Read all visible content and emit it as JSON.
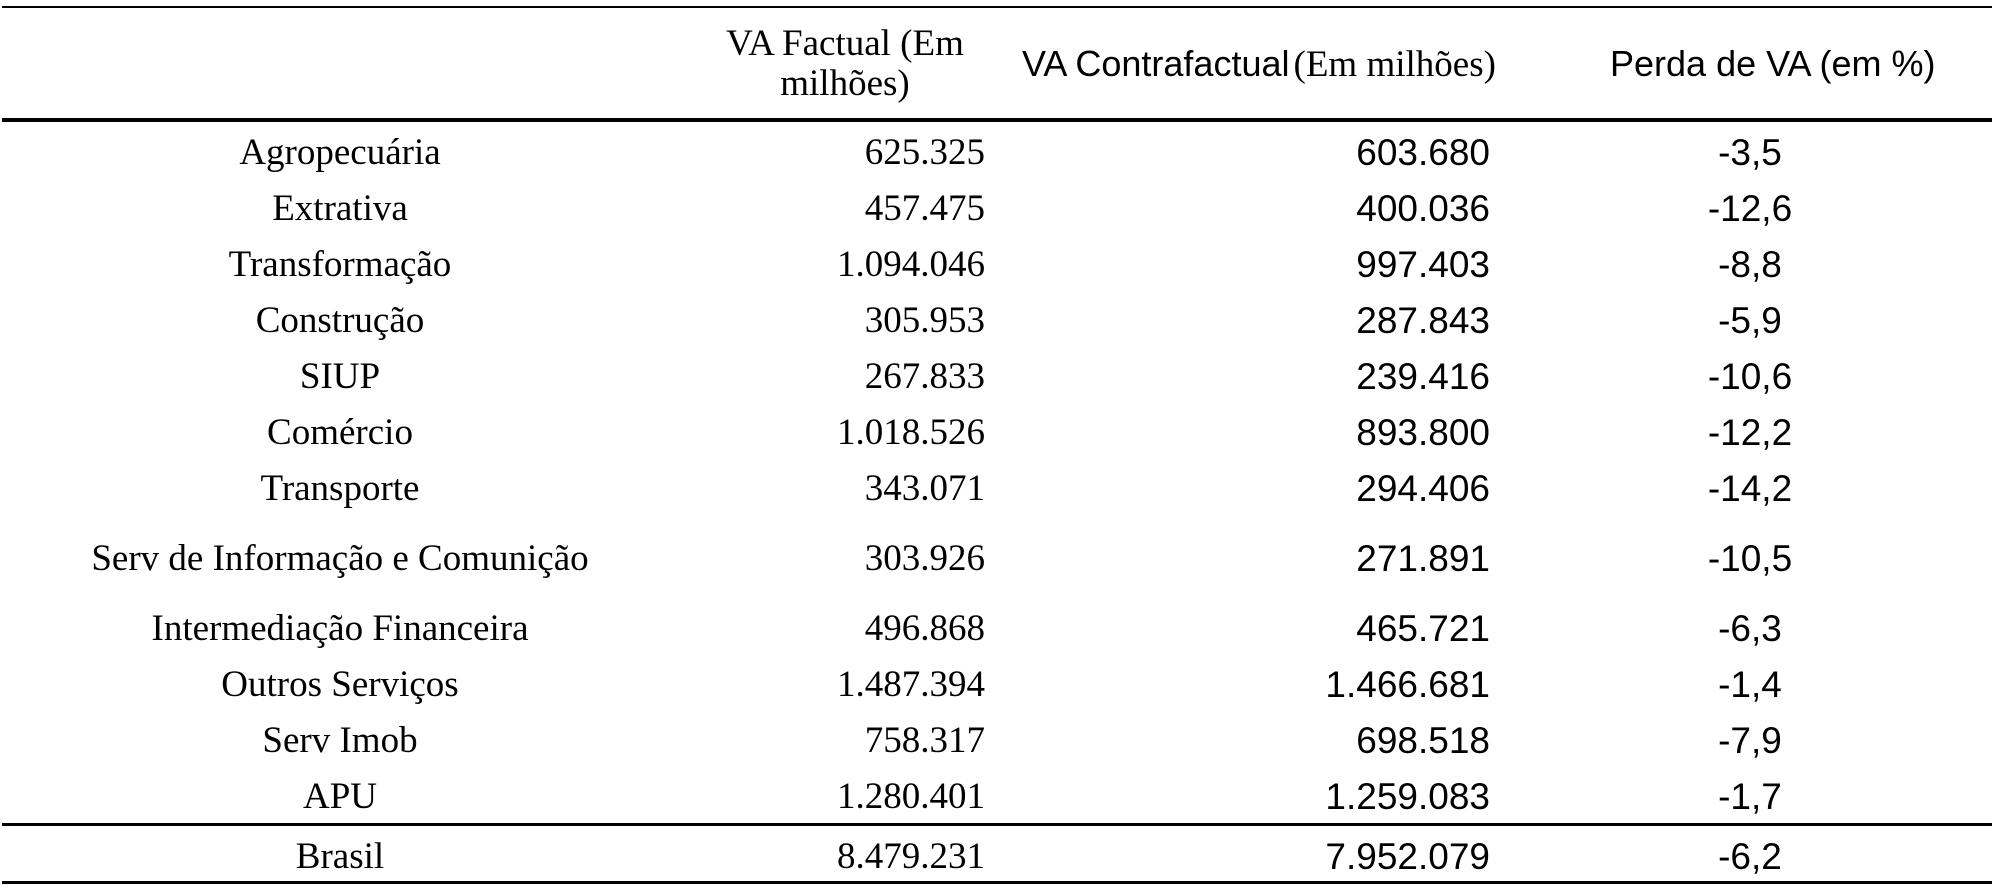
{
  "table": {
    "headers": {
      "factual_line1": "VA Factual (Em",
      "factual_line2": "milhões)",
      "contrafactual_main": "VA Contrafactual",
      "contrafactual_unit": "(Em milhões)",
      "perda": "Perda de VA (em %)"
    },
    "rows": [
      {
        "setor": "Agropecuária",
        "factual": "625.325",
        "contrafactual": "603.680",
        "perda": "-3,5"
      },
      {
        "setor": "Extrativa",
        "factual": "457.475",
        "contrafactual": "400.036",
        "perda": "-12,6"
      },
      {
        "setor": "Transformação",
        "factual": "1.094.046",
        "contrafactual": "997.403",
        "perda": "-8,8"
      },
      {
        "setor": "Construção",
        "factual": "305.953",
        "contrafactual": "287.843",
        "perda": "-5,9"
      },
      {
        "setor": "SIUP",
        "factual": "267.833",
        "contrafactual": "239.416",
        "perda": "-10,6"
      },
      {
        "setor": "Comércio",
        "factual": "1.018.526",
        "contrafactual": "893.800",
        "perda": "-12,2"
      },
      {
        "setor": "Transporte",
        "factual": "343.071",
        "contrafactual": "294.406",
        "perda": "-14,2"
      },
      {
        "setor": "Serv de Informação e Comunição",
        "factual": "303.926",
        "contrafactual": "271.891",
        "perda": "-10,5"
      },
      {
        "setor": "Intermediação Financeira",
        "factual": "496.868",
        "contrafactual": "465.721",
        "perda": "-6,3"
      },
      {
        "setor": "Outros Serviços",
        "factual": "1.487.394",
        "contrafactual": "1.466.681",
        "perda": "-1,4"
      },
      {
        "setor": "Serv Imob",
        "factual": "758.317",
        "contrafactual": "698.518",
        "perda": "-7,9"
      },
      {
        "setor": "APU",
        "factual": "1.280.401",
        "contrafactual": "1.259.083",
        "perda": "-1,7"
      }
    ],
    "total": {
      "setor": "Brasil",
      "factual": "8.479.231",
      "contrafactual": "7.952.079",
      "perda": "-6,2"
    }
  }
}
